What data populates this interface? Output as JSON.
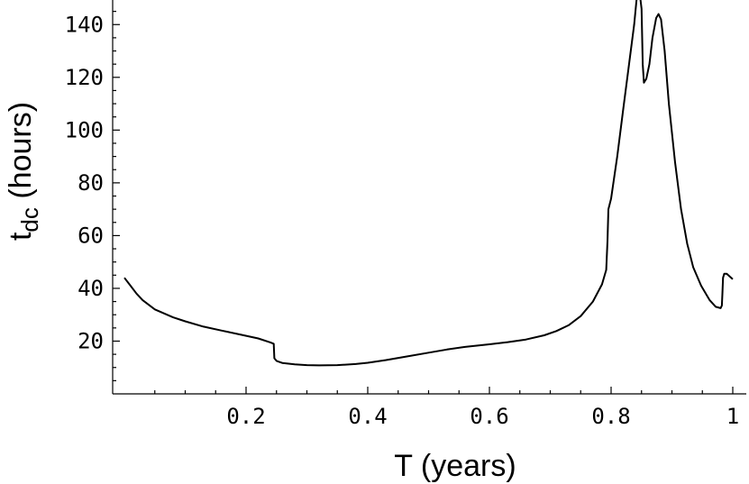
{
  "chart_data": {
    "type": "line",
    "title": "",
    "xlabel": "T (years)",
    "ylabel": {
      "main": "t",
      "sub": "dc",
      "rest": " (hours)"
    },
    "xlim": [
      0,
      1.0
    ],
    "ylim": [
      0,
      150
    ],
    "xticks": [
      {
        "value": 0.2,
        "label": "0.2"
      },
      {
        "value": 0.4,
        "label": "0.4"
      },
      {
        "value": 0.6,
        "label": "0.6"
      },
      {
        "value": 0.8,
        "label": "0.8"
      },
      {
        "value": 1.0,
        "label": "1"
      }
    ],
    "yticks": [
      {
        "value": 20,
        "label": "20"
      },
      {
        "value": 40,
        "label": "40"
      },
      {
        "value": 60,
        "label": "60"
      },
      {
        "value": 80,
        "label": "80"
      },
      {
        "value": 100,
        "label": "100"
      },
      {
        "value": 120,
        "label": "120"
      },
      {
        "value": 140,
        "label": "140"
      }
    ],
    "grid": false,
    "series": [
      {
        "points": [
          [
            0.0,
            44
          ],
          [
            0.01,
            41
          ],
          [
            0.02,
            38
          ],
          [
            0.03,
            35.5
          ],
          [
            0.05,
            32
          ],
          [
            0.08,
            29
          ],
          [
            0.1,
            27.5
          ],
          [
            0.13,
            25.5
          ],
          [
            0.16,
            24
          ],
          [
            0.19,
            22.5
          ],
          [
            0.22,
            21
          ],
          [
            0.24,
            19.5
          ],
          [
            0.2455,
            19
          ],
          [
            0.2465,
            13.5
          ],
          [
            0.25,
            12.5
          ],
          [
            0.26,
            11.7
          ],
          [
            0.28,
            11.2
          ],
          [
            0.3,
            10.9
          ],
          [
            0.32,
            10.8
          ],
          [
            0.35,
            10.9
          ],
          [
            0.38,
            11.3
          ],
          [
            0.4,
            11.8
          ],
          [
            0.43,
            12.8
          ],
          [
            0.46,
            14
          ],
          [
            0.5,
            15.6
          ],
          [
            0.53,
            16.8
          ],
          [
            0.56,
            17.8
          ],
          [
            0.6,
            18.8
          ],
          [
            0.63,
            19.6
          ],
          [
            0.66,
            20.6
          ],
          [
            0.69,
            22.2
          ],
          [
            0.71,
            23.8
          ],
          [
            0.73,
            26
          ],
          [
            0.75,
            29.5
          ],
          [
            0.77,
            35
          ],
          [
            0.785,
            41.5
          ],
          [
            0.792,
            47
          ],
          [
            0.794,
            58
          ],
          [
            0.7955,
            70
          ],
          [
            0.8,
            74
          ],
          [
            0.81,
            90
          ],
          [
            0.82,
            108
          ],
          [
            0.83,
            126
          ],
          [
            0.838,
            140
          ],
          [
            0.842,
            150
          ],
          [
            0.848,
            150
          ],
          [
            0.85,
            146
          ],
          [
            0.852,
            125
          ],
          [
            0.854,
            118
          ],
          [
            0.858,
            119.5
          ],
          [
            0.863,
            125
          ],
          [
            0.868,
            135
          ],
          [
            0.874,
            142.5
          ],
          [
            0.878,
            144
          ],
          [
            0.882,
            142
          ],
          [
            0.888,
            130
          ],
          [
            0.895,
            110
          ],
          [
            0.905,
            88
          ],
          [
            0.915,
            70
          ],
          [
            0.925,
            57
          ],
          [
            0.935,
            48
          ],
          [
            0.948,
            41
          ],
          [
            0.962,
            35.5
          ],
          [
            0.972,
            33
          ],
          [
            0.98,
            32.5
          ],
          [
            0.982,
            33.5
          ],
          [
            0.983,
            38
          ],
          [
            0.984,
            44
          ],
          [
            0.986,
            45.5
          ],
          [
            0.99,
            45.5
          ],
          [
            0.995,
            44.5
          ],
          [
            1.0,
            43.5
          ]
        ]
      }
    ]
  }
}
